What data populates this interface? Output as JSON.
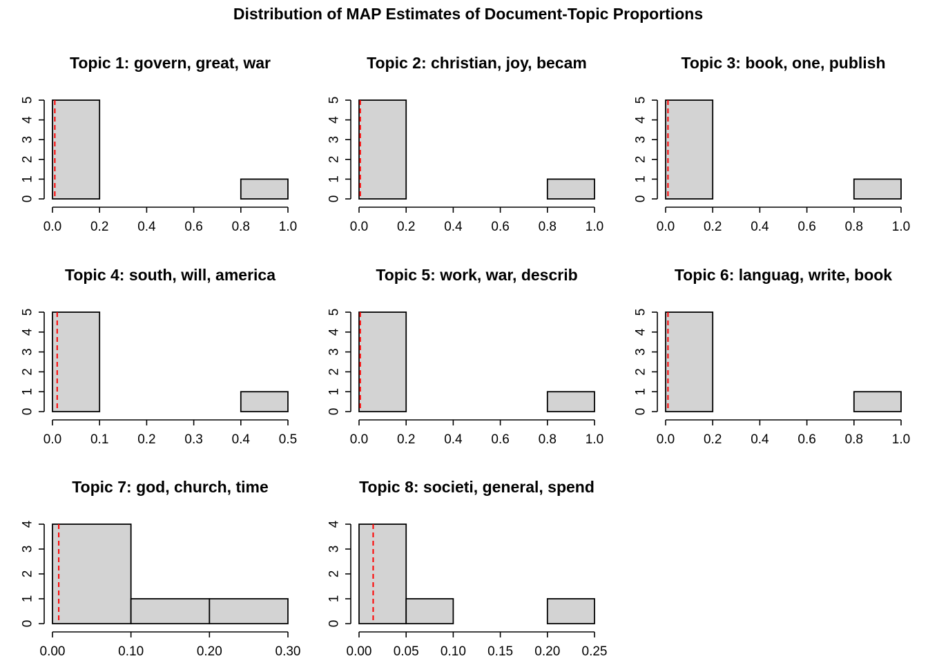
{
  "figure": {
    "title": "Distribution of MAP Estimates of Document-Topic Proportions"
  },
  "chart_data": [
    {
      "type": "bar",
      "title": "Topic 1: govern, great, war",
      "bins": [
        [
          0.0,
          0.2
        ],
        [
          0.2,
          0.4
        ],
        [
          0.4,
          0.6
        ],
        [
          0.6,
          0.8
        ],
        [
          0.8,
          1.0
        ]
      ],
      "values": [
        5,
        0,
        0,
        0,
        1
      ],
      "xlim": [
        0.0,
        1.0
      ],
      "ylim": [
        0,
        5
      ],
      "xticks": [
        "0.0",
        "0.2",
        "0.4",
        "0.6",
        "0.8",
        "1.0"
      ],
      "yticks": [
        "0",
        "1",
        "2",
        "3",
        "4",
        "5"
      ],
      "reference_line": 0.01,
      "xlabel": "",
      "ylabel": ""
    },
    {
      "type": "bar",
      "title": "Topic 2: christian, joy, becam",
      "bins": [
        [
          0.0,
          0.2
        ],
        [
          0.2,
          0.4
        ],
        [
          0.4,
          0.6
        ],
        [
          0.6,
          0.8
        ],
        [
          0.8,
          1.0
        ]
      ],
      "values": [
        5,
        0,
        0,
        0,
        1
      ],
      "xlim": [
        0.0,
        1.0
      ],
      "ylim": [
        0,
        5
      ],
      "xticks": [
        "0.0",
        "0.2",
        "0.4",
        "0.6",
        "0.8",
        "1.0"
      ],
      "yticks": [
        "0",
        "1",
        "2",
        "3",
        "4",
        "5"
      ],
      "reference_line": 0.005,
      "xlabel": "",
      "ylabel": ""
    },
    {
      "type": "bar",
      "title": "Topic 3: book, one, publish",
      "bins": [
        [
          0.0,
          0.2
        ],
        [
          0.2,
          0.4
        ],
        [
          0.4,
          0.6
        ],
        [
          0.6,
          0.8
        ],
        [
          0.8,
          1.0
        ]
      ],
      "values": [
        5,
        0,
        0,
        0,
        1
      ],
      "xlim": [
        0.0,
        1.0
      ],
      "ylim": [
        0,
        5
      ],
      "xticks": [
        "0.0",
        "0.2",
        "0.4",
        "0.6",
        "0.8",
        "1.0"
      ],
      "yticks": [
        "0",
        "1",
        "2",
        "3",
        "4",
        "5"
      ],
      "reference_line": 0.01,
      "xlabel": "",
      "ylabel": ""
    },
    {
      "type": "bar",
      "title": "Topic 4: south, will, america",
      "bins": [
        [
          0.0,
          0.1
        ],
        [
          0.1,
          0.2
        ],
        [
          0.2,
          0.3
        ],
        [
          0.3,
          0.4
        ],
        [
          0.4,
          0.5
        ]
      ],
      "values": [
        5,
        0,
        0,
        0,
        1
      ],
      "xlim": [
        0.0,
        0.5
      ],
      "ylim": [
        0,
        5
      ],
      "xticks": [
        "0.0",
        "0.1",
        "0.2",
        "0.3",
        "0.4",
        "0.5"
      ],
      "yticks": [
        "0",
        "1",
        "2",
        "3",
        "4",
        "5"
      ],
      "reference_line": 0.01,
      "xlabel": "",
      "ylabel": ""
    },
    {
      "type": "bar",
      "title": "Topic 5: work, war, describ",
      "bins": [
        [
          0.0,
          0.2
        ],
        [
          0.2,
          0.4
        ],
        [
          0.4,
          0.6
        ],
        [
          0.6,
          0.8
        ],
        [
          0.8,
          1.0
        ]
      ],
      "values": [
        5,
        0,
        0,
        0,
        1
      ],
      "xlim": [
        0.0,
        1.0
      ],
      "ylim": [
        0,
        5
      ],
      "xticks": [
        "0.0",
        "0.2",
        "0.4",
        "0.6",
        "0.8",
        "1.0"
      ],
      "yticks": [
        "0",
        "1",
        "2",
        "3",
        "4",
        "5"
      ],
      "reference_line": 0.005,
      "xlabel": "",
      "ylabel": ""
    },
    {
      "type": "bar",
      "title": "Topic 6: languag, write, book",
      "bins": [
        [
          0.0,
          0.2
        ],
        [
          0.2,
          0.4
        ],
        [
          0.4,
          0.6
        ],
        [
          0.6,
          0.8
        ],
        [
          0.8,
          1.0
        ]
      ],
      "values": [
        5,
        0,
        0,
        0,
        1
      ],
      "xlim": [
        0.0,
        1.0
      ],
      "ylim": [
        0,
        5
      ],
      "xticks": [
        "0.0",
        "0.2",
        "0.4",
        "0.6",
        "0.8",
        "1.0"
      ],
      "yticks": [
        "0",
        "1",
        "2",
        "3",
        "4",
        "5"
      ],
      "reference_line": 0.01,
      "xlabel": "",
      "ylabel": ""
    },
    {
      "type": "bar",
      "title": "Topic 7: god, church, time",
      "bins": [
        [
          0.0,
          0.1
        ],
        [
          0.1,
          0.2
        ],
        [
          0.2,
          0.3
        ]
      ],
      "values": [
        4,
        1,
        1
      ],
      "xlim": [
        0.0,
        0.3
      ],
      "ylim": [
        0,
        4
      ],
      "xticks": [
        "0.00",
        "0.10",
        "0.20",
        "0.30"
      ],
      "yticks": [
        "0",
        "1",
        "2",
        "3",
        "4"
      ],
      "reference_line": 0.008,
      "xlabel": "",
      "ylabel": ""
    },
    {
      "type": "bar",
      "title": "Topic 8: societi, general, spend",
      "bins": [
        [
          0.0,
          0.05
        ],
        [
          0.05,
          0.1
        ],
        [
          0.1,
          0.15
        ],
        [
          0.15,
          0.2
        ],
        [
          0.2,
          0.25
        ]
      ],
      "values": [
        4,
        1,
        0,
        0,
        1
      ],
      "xlim": [
        0.0,
        0.25
      ],
      "ylim": [
        0,
        4
      ],
      "xticks": [
        "0.00",
        "0.05",
        "0.10",
        "0.15",
        "0.20",
        "0.25"
      ],
      "yticks": [
        "0",
        "1",
        "2",
        "3",
        "4"
      ],
      "reference_line": 0.015,
      "xlabel": "",
      "ylabel": ""
    }
  ],
  "colors": {
    "bar_fill": "#d3d3d3",
    "bar_stroke": "#000000",
    "reference_line": "#ff0000",
    "axis": "#000000"
  }
}
